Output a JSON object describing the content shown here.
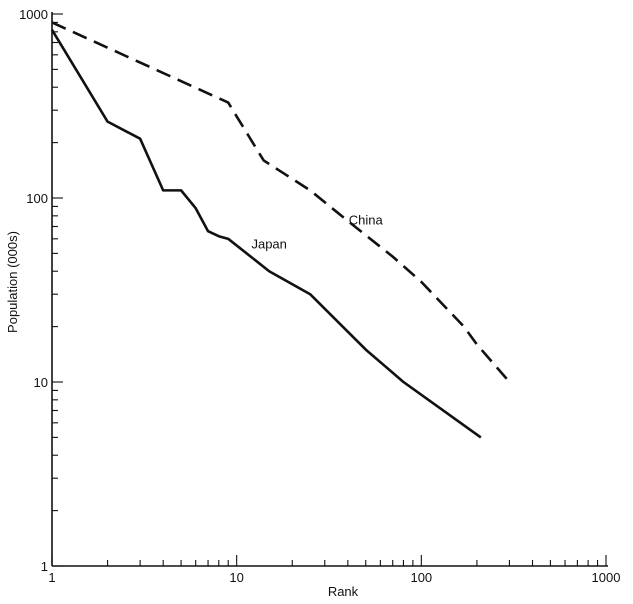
{
  "chart_data": {
    "type": "line",
    "xlabel": "Rank",
    "ylabel": "Population (000s)",
    "xscale": "log",
    "yscale": "log",
    "xlim": [
      1,
      1000
    ],
    "ylim": [
      1,
      1000
    ],
    "x_ticks": [
      {
        "value": 1,
        "label": "1"
      },
      {
        "value": 10,
        "label": "10"
      },
      {
        "value": 100,
        "label": "100"
      },
      {
        "value": 1000,
        "label": "1000"
      }
    ],
    "y_ticks": [
      {
        "value": 1,
        "label": "1"
      },
      {
        "value": 10,
        "label": "10"
      },
      {
        "value": 100,
        "label": "100"
      },
      {
        "value": 1000,
        "label": "1000"
      }
    ],
    "grid": false,
    "series": [
      {
        "name": "China",
        "style": "dashed",
        "color": "#111111",
        "label_at": {
          "x": 50,
          "y": 72
        },
        "points": [
          [
            1,
            900
          ],
          [
            9,
            330
          ],
          [
            14,
            160
          ],
          [
            25,
            110
          ],
          [
            40,
            75
          ],
          [
            70,
            48
          ],
          [
            100,
            35
          ],
          [
            170,
            20
          ],
          [
            200,
            16
          ],
          [
            300,
            10
          ]
        ]
      },
      {
        "name": "Japan",
        "style": "solid",
        "color": "#111111",
        "label_at": {
          "x": 15,
          "y": 53
        },
        "points": [
          [
            1,
            820
          ],
          [
            2,
            260
          ],
          [
            3,
            210
          ],
          [
            4,
            110
          ],
          [
            5,
            110
          ],
          [
            6,
            88
          ],
          [
            7,
            66
          ],
          [
            8,
            62
          ],
          [
            9,
            60
          ],
          [
            15,
            40
          ],
          [
            25,
            30
          ],
          [
            50,
            15
          ],
          [
            80,
            10
          ],
          [
            210,
            5
          ]
        ]
      }
    ]
  }
}
